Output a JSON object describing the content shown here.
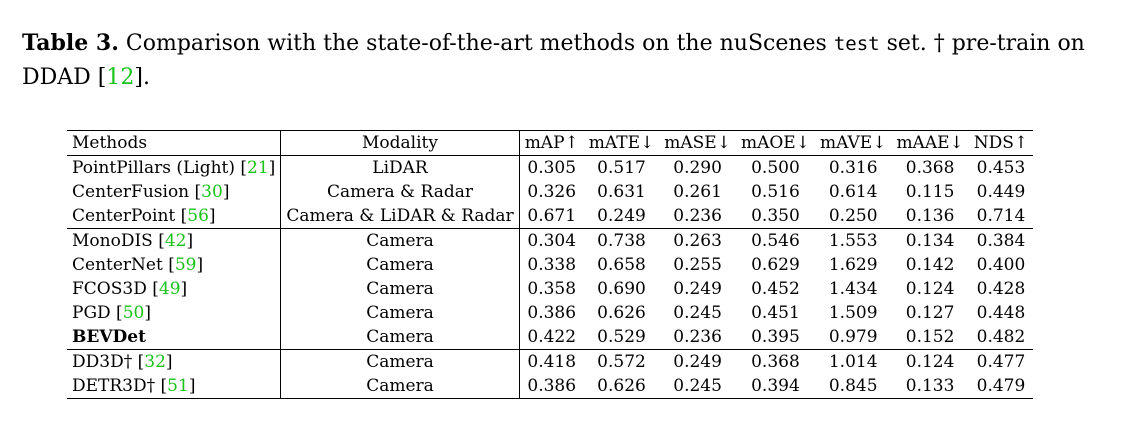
{
  "caption": {
    "label": "Table 3.",
    "text_a": " Comparison with the state-of-the-art methods on the nuScenes ",
    "code": "test",
    "text_b": " set. † pre-train on DDAD [",
    "cite": "12",
    "text_c": "]."
  },
  "table": {
    "headers": [
      "Methods",
      "Modality",
      "mAP↑",
      "mATE↓",
      "mASE↓",
      "mAOE↓",
      "mAVE↓",
      "mAAE↓",
      "NDS↑"
    ],
    "groups": [
      {
        "rows": [
          {
            "method": "PointPillars (Light) [",
            "cite": "21",
            "method_end": "]",
            "modality": "LiDAR",
            "values": [
              "0.305",
              "0.517",
              "0.290",
              "0.500",
              "0.316",
              "0.368",
              "0.453"
            ]
          },
          {
            "method": "CenterFusion [",
            "cite": "30",
            "method_end": "]",
            "modality": "Camera & Radar",
            "values": [
              "0.326",
              "0.631",
              "0.261",
              "0.516",
              "0.614",
              "0.115",
              "0.449"
            ]
          },
          {
            "method": "CenterPoint [",
            "cite": "56",
            "method_end": "]",
            "modality": "Camera & LiDAR & Radar",
            "values": [
              "0.671",
              "0.249",
              "0.236",
              "0.350",
              "0.250",
              "0.136",
              "0.714"
            ]
          }
        ]
      },
      {
        "rows": [
          {
            "method": "MonoDIS [",
            "cite": "42",
            "method_end": "]",
            "modality": "Camera",
            "values": [
              "0.304",
              "0.738",
              "0.263",
              "0.546",
              "1.553",
              "0.134",
              "0.384"
            ]
          },
          {
            "method": "CenterNet [",
            "cite": "59",
            "method_end": "]",
            "modality": "Camera",
            "values": [
              "0.338",
              "0.658",
              "0.255",
              "0.629",
              "1.629",
              "0.142",
              "0.400"
            ]
          },
          {
            "method": "FCOS3D [",
            "cite": "49",
            "method_end": "]",
            "modality": "Camera",
            "values": [
              "0.358",
              "0.690",
              "0.249",
              "0.452",
              "1.434",
              "0.124",
              "0.428"
            ],
            "bold_values": [
              5
            ]
          },
          {
            "method": "PGD [",
            "cite": "50",
            "method_end": "]",
            "modality": "Camera",
            "values": [
              "0.386",
              "0.626",
              "0.245",
              "0.451",
              "1.509",
              "0.127",
              "0.448"
            ]
          },
          {
            "method": "BEVDet",
            "cite": "",
            "method_end": "",
            "modality": "Camera",
            "method_bold": true,
            "values": [
              "0.422",
              "0.529",
              "0.236",
              "0.395",
              "0.979",
              "0.152",
              "0.482"
            ],
            "bold_values": [
              0,
              1,
              2,
              3,
              4,
              6
            ]
          }
        ]
      },
      {
        "rows": [
          {
            "method": "DD3D† [",
            "cite": "32",
            "method_end": "]",
            "modality": "Camera",
            "values": [
              "0.418",
              "0.572",
              "0.249",
              "0.368",
              "1.014",
              "0.124",
              "0.477"
            ]
          },
          {
            "method": "DETR3D† [",
            "cite": "51",
            "method_end": "]",
            "modality": "Camera",
            "values": [
              "0.386",
              "0.626",
              "0.245",
              "0.394",
              "0.845",
              "0.133",
              "0.479"
            ]
          }
        ]
      }
    ]
  }
}
